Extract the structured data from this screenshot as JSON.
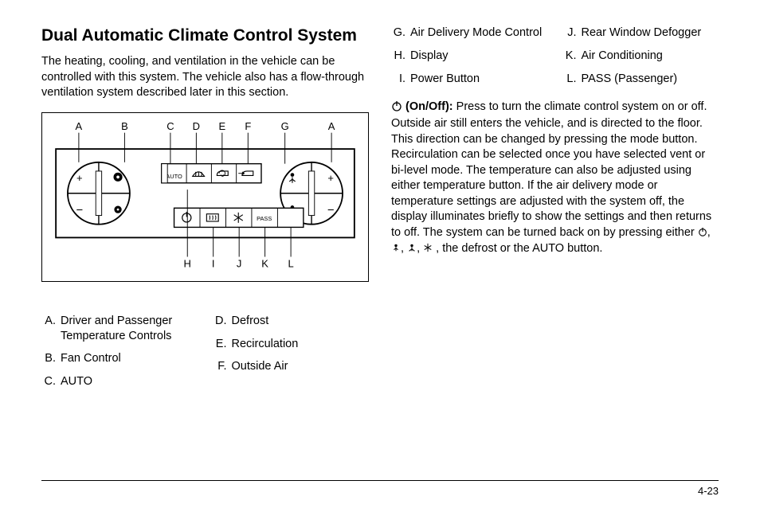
{
  "title": "Dual Automatic Climate Control System",
  "intro": "The heating, cooling, and ventilation in the vehicle can be controlled with this system. The vehicle also has a flow-through ventilation system described later in this section.",
  "diagram": {
    "topLabels": [
      "A",
      "B",
      "C",
      "D",
      "E",
      "F",
      "G",
      "A"
    ],
    "botLabels": [
      "H",
      "I",
      "J",
      "K",
      "L"
    ],
    "topX": [
      43,
      105,
      167,
      202,
      237,
      272,
      322,
      385
    ],
    "botX": [
      190,
      225,
      260,
      295,
      330
    ],
    "buttonsTop": [
      "AUTO",
      "defrost-front",
      "recirc",
      "outside-air"
    ],
    "buttonsBot": [
      "power",
      "defrost-rear",
      "snowflake",
      "PASS"
    ],
    "dialSymbolsLeft": [
      "plus",
      "fan-hi",
      "minus",
      "fan-lo"
    ],
    "dialSymbolsRight": [
      "person-up",
      "plus",
      "person-down",
      "minus"
    ],
    "stroke": "#000000",
    "fill": "#ffffff"
  },
  "legendLeft": [
    {
      "l": "A.",
      "t": "Driver and Passenger Temperature Controls"
    },
    {
      "l": "B.",
      "t": "Fan Control"
    },
    {
      "l": "C.",
      "t": "AUTO"
    }
  ],
  "legendMid": [
    {
      "l": "D.",
      "t": "Defrost"
    },
    {
      "l": "E.",
      "t": "Recirculation"
    },
    {
      "l": "F.",
      "t": "Outside Air"
    }
  ],
  "legendRightA": [
    {
      "l": "G.",
      "t": "Air Delivery Mode Control"
    },
    {
      "l": "H.",
      "t": "Display"
    },
    {
      "l": "I.",
      "t": "Power Button"
    }
  ],
  "legendRightB": [
    {
      "l": "J.",
      "t": "Rear Window Defogger"
    },
    {
      "l": "K.",
      "t": "Air Conditioning"
    },
    {
      "l": "L.",
      "t": "PASS (Passenger)"
    }
  ],
  "onoff": {
    "heading": "(On/Off):",
    "p1a": "Press to turn the climate control system on or off. Outside air still enters the vehicle, and is directed to the floor. This direction can be changed by pressing the mode button. Recirculation can be selected once you have selected vent or bi-level mode. The temperature can also be adjusted using either temperature button. If the air delivery mode or temperature settings are adjusted with the system off, the display illuminates briefly to show the settings and then returns to off. The system can be turned back on by pressing either ",
    "p1b": ", the defrost or the AUTO button."
  },
  "pageNumber": "4-23",
  "colors": {
    "text": "#000000",
    "bg": "#ffffff"
  }
}
